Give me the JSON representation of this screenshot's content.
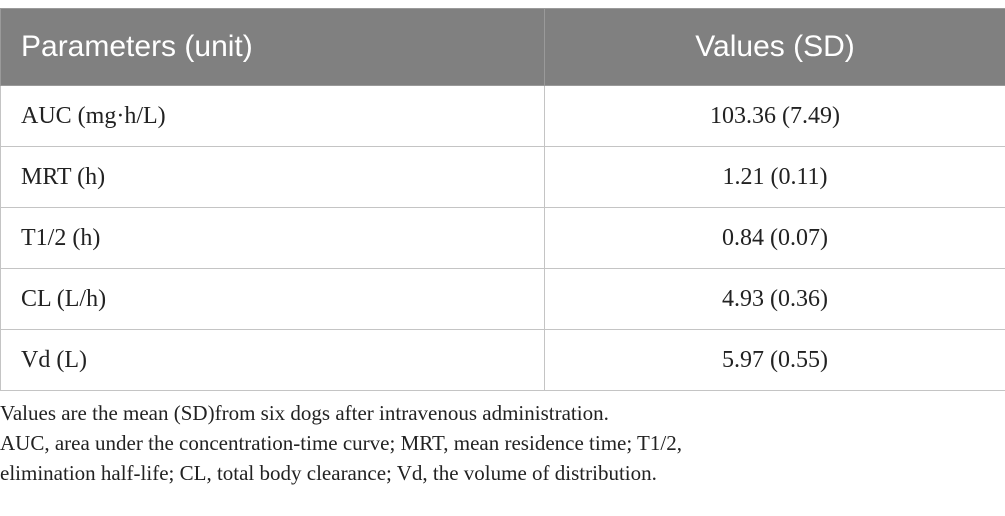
{
  "table": {
    "headers": [
      "Parameters (unit)",
      "Values (SD)"
    ],
    "rows": [
      {
        "parameter": "AUC (mg·h/L)",
        "value": "103.36 (7.49)"
      },
      {
        "parameter": "MRT (h)",
        "value": "1.21 (0.11)"
      },
      {
        "parameter": "T1/2 (h)",
        "value": "0.84 (0.07)"
      },
      {
        "parameter": "CL (L/h)",
        "value": "4.93 (0.36)"
      },
      {
        "parameter": "Vd (L)",
        "value": "5.97 (0.55)"
      }
    ]
  },
  "notes": {
    "line1": "Values are the mean (SD)from six dogs after intravenous administration.",
    "line2": "AUC, area under the concentration-time curve; MRT, mean residence time; T1/2,",
    "line3": "elimination half-life; CL, total body clearance; Vd, the volume of distribution."
  },
  "colors": {
    "header_bg": "#808080",
    "header_text": "#ffffff",
    "border": "#c4c4c4",
    "text": "#222222"
  }
}
